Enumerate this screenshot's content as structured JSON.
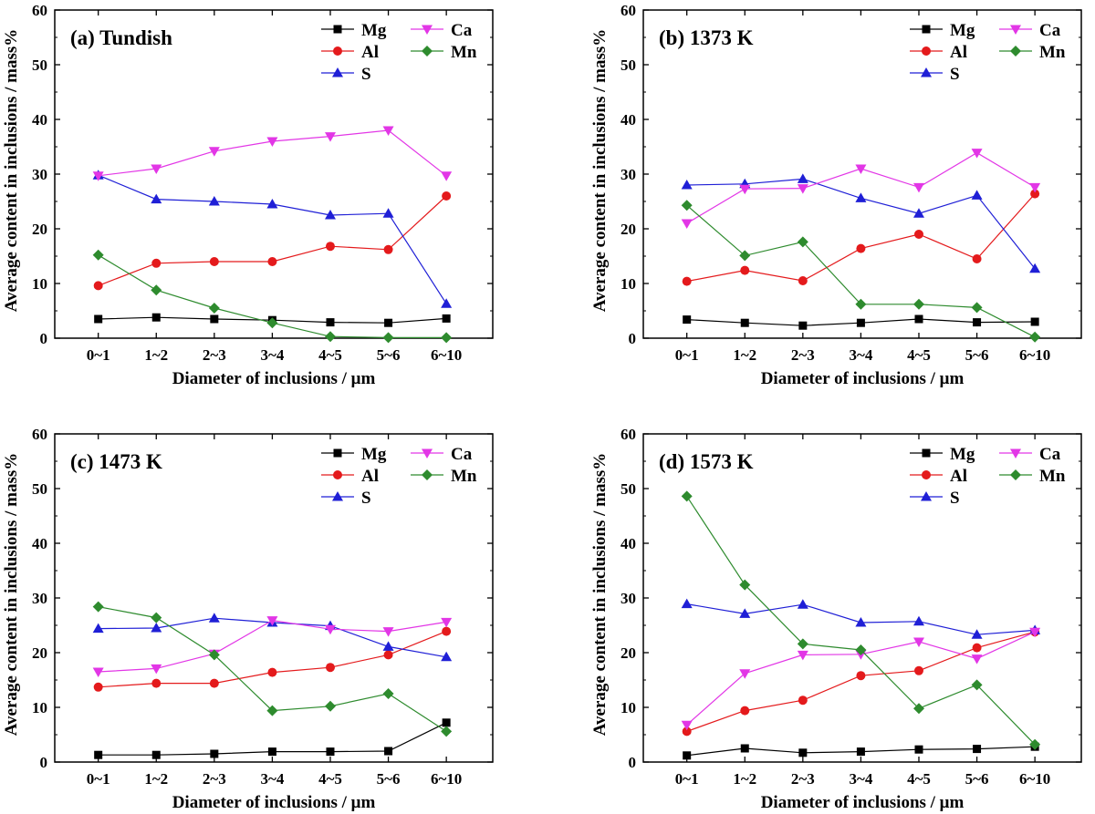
{
  "figure": {
    "ylabel": "Average content in inclusions / mass%",
    "xlabel": "Diameter of inclusions / μm"
  },
  "series_colors": {
    "Mg": "#000000",
    "Al": "#e41a1c",
    "S": "#1f1fd6",
    "Ca": "#e236e6",
    "Mn": "#2e8b2e"
  },
  "chart_data": [
    {
      "type": "line",
      "title": "(a) Tundish",
      "categories": [
        "0~1",
        "1~2",
        "2~3",
        "3~4",
        "4~5",
        "5~6",
        "6~10"
      ],
      "xlabel": "Diameter of inclusions / μm",
      "ylabel": "Average content in inclusions / mass%",
      "ylim": [
        0,
        60
      ],
      "yticks": [
        0,
        10,
        20,
        30,
        40,
        50,
        60
      ],
      "legend": [
        "Mg",
        "Ca",
        "Al",
        "Mn",
        "S"
      ],
      "series": [
        {
          "name": "Mg",
          "values": [
            3.5,
            3.8,
            3.5,
            3.3,
            2.9,
            2.8,
            3.6
          ]
        },
        {
          "name": "Al",
          "values": [
            9.6,
            13.7,
            14.0,
            14.0,
            16.8,
            16.2,
            26.0
          ]
        },
        {
          "name": "S",
          "values": [
            29.8,
            25.4,
            25.0,
            24.5,
            22.5,
            22.8,
            6.3
          ]
        },
        {
          "name": "Ca",
          "values": [
            29.7,
            31.0,
            34.2,
            36.0,
            36.9,
            38.0,
            29.7
          ]
        },
        {
          "name": "Mn",
          "values": [
            15.2,
            8.8,
            5.5,
            2.8,
            0.3,
            0.1,
            0.1
          ]
        }
      ]
    },
    {
      "type": "line",
      "title": "(b) 1373 K",
      "categories": [
        "0~1",
        "1~2",
        "2~3",
        "3~4",
        "4~5",
        "5~6",
        "6~10"
      ],
      "xlabel": "Diameter of inclusions / μm",
      "ylabel": "Average content in inclusions / mass%",
      "ylim": [
        0,
        60
      ],
      "yticks": [
        0,
        10,
        20,
        30,
        40,
        50,
        60
      ],
      "legend": [
        "Mg",
        "Ca",
        "Al",
        "Mn",
        "S"
      ],
      "series": [
        {
          "name": "Mg",
          "values": [
            3.4,
            2.8,
            2.3,
            2.8,
            3.5,
            2.9,
            3.0
          ]
        },
        {
          "name": "Al",
          "values": [
            10.4,
            12.4,
            10.5,
            16.4,
            19.0,
            14.5,
            26.4
          ]
        },
        {
          "name": "S",
          "values": [
            28.0,
            28.2,
            29.1,
            25.6,
            22.8,
            26.1,
            12.7
          ]
        },
        {
          "name": "Ca",
          "values": [
            21.0,
            27.3,
            27.4,
            31.0,
            27.6,
            33.9,
            27.6
          ]
        },
        {
          "name": "Mn",
          "values": [
            24.3,
            15.1,
            17.6,
            6.2,
            6.2,
            5.6,
            0.2
          ]
        }
      ]
    },
    {
      "type": "line",
      "title": "(c) 1473 K",
      "categories": [
        "0~1",
        "1~2",
        "2~3",
        "3~4",
        "4~5",
        "5~6",
        "6~10"
      ],
      "xlabel": "Diameter of inclusions / μm",
      "ylabel": "Average content in inclusions / mass%",
      "ylim": [
        0,
        60
      ],
      "yticks": [
        0,
        10,
        20,
        30,
        40,
        50,
        60
      ],
      "legend": [
        "Mg",
        "Ca",
        "Al",
        "Mn",
        "S"
      ],
      "series": [
        {
          "name": "Mg",
          "values": [
            1.3,
            1.3,
            1.5,
            1.9,
            1.9,
            2.0,
            7.2
          ]
        },
        {
          "name": "Al",
          "values": [
            13.7,
            14.4,
            14.4,
            16.4,
            17.3,
            19.6,
            23.9
          ]
        },
        {
          "name": "S",
          "values": [
            24.4,
            24.5,
            26.3,
            25.5,
            24.9,
            21.1,
            19.2
          ]
        },
        {
          "name": "Ca",
          "values": [
            16.5,
            17.1,
            19.8,
            25.9,
            24.3,
            23.9,
            25.6
          ]
        },
        {
          "name": "Mn",
          "values": [
            28.4,
            26.4,
            19.6,
            9.4,
            10.2,
            12.5,
            5.6
          ]
        }
      ]
    },
    {
      "type": "line",
      "title": "(d) 1573 K",
      "categories": [
        "0~1",
        "1~2",
        "2~3",
        "3~4",
        "4~5",
        "5~6",
        "6~10"
      ],
      "xlabel": "Diameter of inclusions / μm",
      "ylabel": "Average content in inclusions / mass%",
      "ylim": [
        0,
        60
      ],
      "yticks": [
        0,
        10,
        20,
        30,
        40,
        50,
        60
      ],
      "legend": [
        "Mg",
        "Ca",
        "Al",
        "Mn",
        "S"
      ],
      "series": [
        {
          "name": "Mg",
          "values": [
            1.2,
            2.5,
            1.7,
            1.9,
            2.3,
            2.4,
            2.8
          ]
        },
        {
          "name": "Al",
          "values": [
            5.6,
            9.4,
            11.3,
            15.8,
            16.7,
            20.9,
            23.8
          ]
        },
        {
          "name": "S",
          "values": [
            28.9,
            27.1,
            28.8,
            25.5,
            25.7,
            23.3,
            24.1
          ]
        },
        {
          "name": "Ca",
          "values": [
            6.8,
            16.2,
            19.6,
            19.7,
            22.0,
            18.9,
            23.8
          ]
        },
        {
          "name": "Mn",
          "values": [
            48.6,
            32.4,
            21.6,
            20.5,
            9.8,
            14.1,
            3.2
          ]
        }
      ]
    }
  ]
}
